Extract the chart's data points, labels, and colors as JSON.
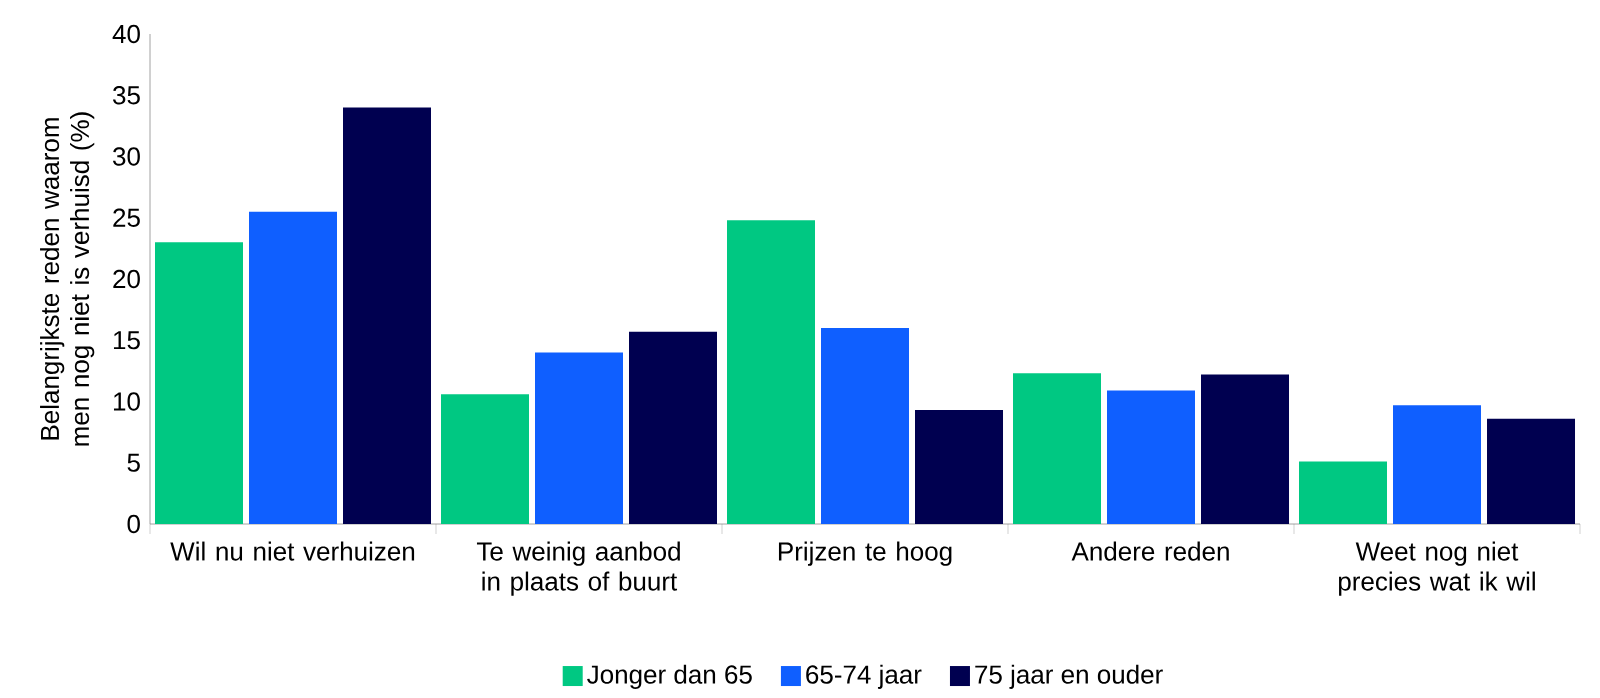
{
  "chart_data": {
    "type": "bar",
    "ylabel": "Belangrijkste reden waarom men nog niet is verhuisd (%)",
    "categories": [
      "Wil nu niet verhuizen",
      "Te weinig aanbod in plaats of buurt",
      "Prijzen te hoog",
      "Andere reden",
      "Weet nog niet precies wat ik wil"
    ],
    "series": [
      {
        "name": "Jonger dan 65",
        "color": "#00c882",
        "values": [
          23.0,
          10.6,
          24.8,
          12.3,
          5.1
        ]
      },
      {
        "name": "65-74 jaar",
        "color": "#0f5fff",
        "values": [
          25.5,
          14.0,
          16.0,
          10.9,
          9.7
        ]
      },
      {
        "name": "75 jaar en ouder",
        "color": "#000050",
        "values": [
          34.0,
          15.7,
          9.3,
          12.2,
          8.6
        ]
      }
    ],
    "ylim": [
      0,
      40
    ],
    "yticks": [
      0,
      5,
      10,
      15,
      20,
      25,
      30,
      35,
      40
    ],
    "grid": false,
    "legend": "bottom"
  }
}
